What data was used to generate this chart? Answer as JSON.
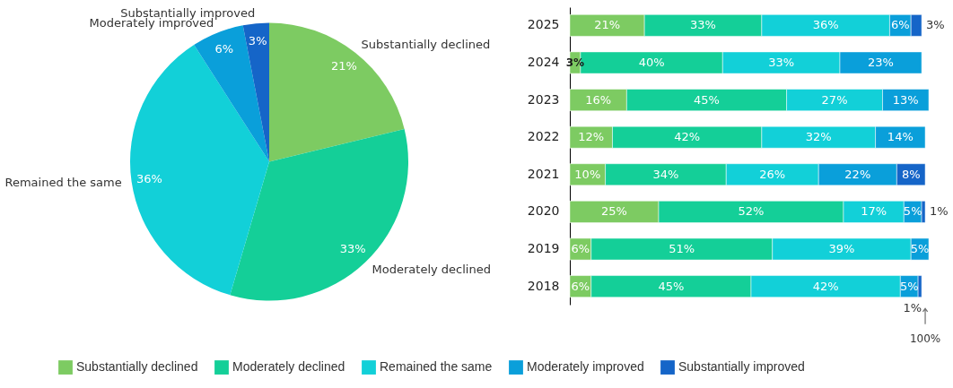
{
  "chart_data": [
    {
      "type": "pie",
      "categories": [
        "Substantially declined",
        "Moderately declined",
        "Remained the same",
        "Moderately improved",
        "Substantially improved"
      ],
      "values": [
        21,
        33,
        36,
        6,
        3
      ],
      "colors": [
        "#7dcb62",
        "#14cf98",
        "#12d0d8",
        "#0a9fda",
        "#1565c8"
      ],
      "value_labels": [
        "21%",
        "33%",
        "36%",
        "6%",
        "3%"
      ]
    },
    {
      "type": "bar",
      "orientation": "horizontal",
      "stacked": true,
      "categories": [
        "2025",
        "2024",
        "2023",
        "2022",
        "2021",
        "2020",
        "2019",
        "2018"
      ],
      "xlim": [
        0,
        101
      ],
      "tick_labels": "y",
      "legend": "bottom",
      "series": [
        {
          "name": "Substantially declined",
          "color": "#7dcb62",
          "values": [
            21,
            3,
            16,
            12,
            10,
            25,
            6,
            6
          ],
          "value_labels": [
            "21%",
            "3%",
            "16%",
            "12%",
            "10%",
            "25%",
            "6%",
            "6%"
          ]
        },
        {
          "name": "Moderately declined",
          "color": "#14cf98",
          "values": [
            33,
            40,
            45,
            42,
            34,
            52,
            51,
            45
          ],
          "value_labels": [
            "33%",
            "40%",
            "45%",
            "42%",
            "34%",
            "52%",
            "51%",
            "45%"
          ]
        },
        {
          "name": "Remained the same",
          "color": "#12d0d8",
          "values": [
            36,
            33,
            27,
            32,
            26,
            17,
            39,
            42
          ],
          "value_labels": [
            "36%",
            "33%",
            "27%",
            "32%",
            "26%",
            "17%",
            "39%",
            "42%"
          ]
        },
        {
          "name": "Moderately improved",
          "color": "#0a9fda",
          "values": [
            6,
            23,
            13,
            14,
            22,
            5,
            5,
            5
          ],
          "value_labels": [
            "6%",
            "23%",
            "13%",
            "14%",
            "22%",
            "5%",
            "5%",
            "5%"
          ]
        },
        {
          "name": "Substantially improved",
          "color": "#1565c8",
          "values": [
            3,
            null,
            null,
            null,
            8,
            1,
            null,
            1
          ],
          "value_labels": [
            "3%",
            null,
            null,
            null,
            "8%",
            "1%",
            null,
            "1%"
          ]
        }
      ],
      "annotations": [
        {
          "text": "100%",
          "x": 100
        }
      ]
    }
  ]
}
